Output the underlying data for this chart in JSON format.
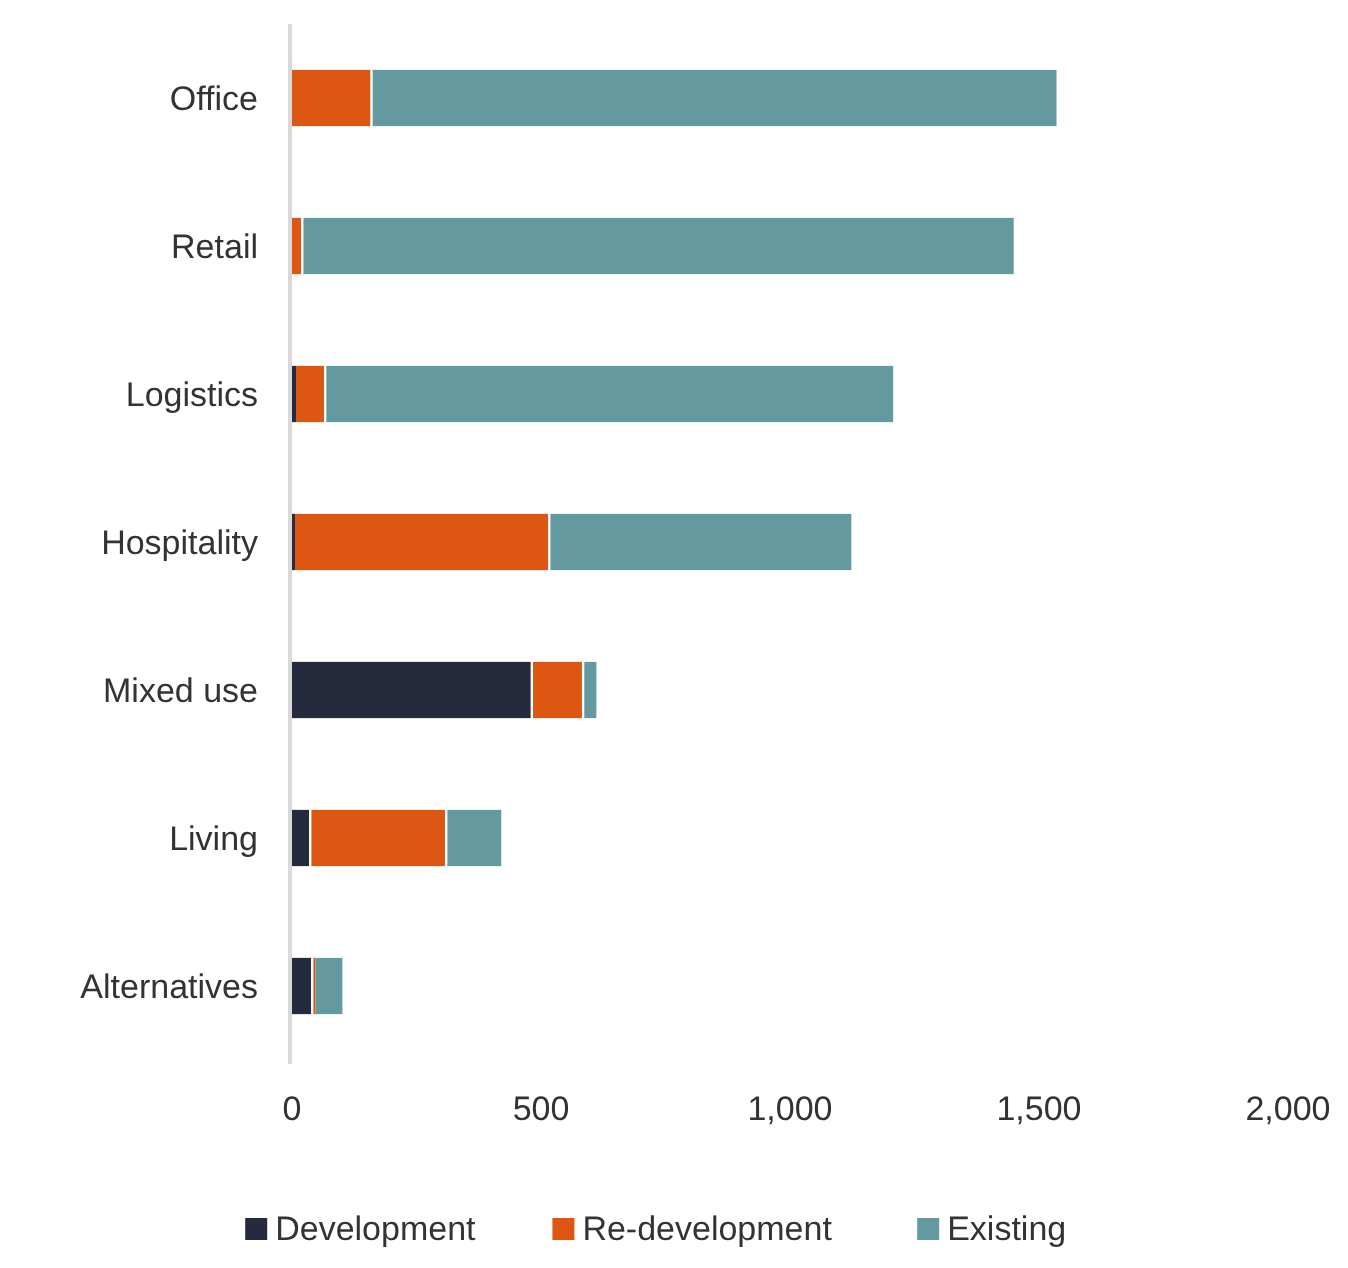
{
  "chart_data": {
    "type": "bar",
    "orientation": "horizontal",
    "stacked": true,
    "categories": [
      "Office",
      "Retail",
      "Logistics",
      "Hospitality",
      "Mixed use",
      "Living",
      "Alternatives"
    ],
    "series": [
      {
        "name": "Development",
        "color": "#262a3d",
        "values": [
          0,
          0,
          8,
          6,
          484,
          39,
          43
        ]
      },
      {
        "name": "Re-development",
        "color": "#dd5713",
        "values": [
          162,
          23,
          61,
          513,
          103,
          273,
          4
        ]
      },
      {
        "name": "Existing",
        "color": "#6599a0",
        "values": [
          1378,
          1431,
          1143,
          609,
          29,
          113,
          59
        ]
      }
    ],
    "xlim": [
      0,
      2000
    ],
    "xticks": [
      0,
      {
        "value": 500,
        "label": "500"
      },
      {
        "value": 1000,
        "label": "1,000"
      },
      {
        "value": 1500,
        "label": "1,500"
      },
      {
        "value": 2000,
        "label": "2,000"
      }
    ],
    "grid": false,
    "legend": "bottom"
  }
}
